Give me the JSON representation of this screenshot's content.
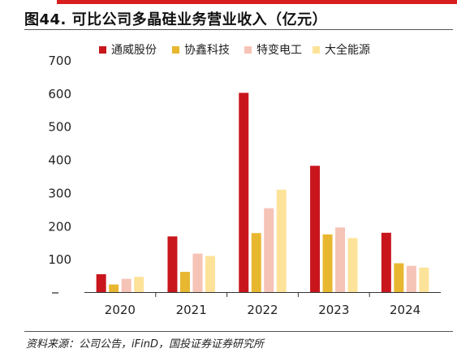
{
  "header": {
    "title": "图44. 可比公司多晶硅业务营业收入（亿元）",
    "accent_color": "#d71f1f"
  },
  "footer": {
    "source": "资料来源：公司公告，iFinD，国投证券证券研究所"
  },
  "chart_data": {
    "type": "bar",
    "title": "图44. 可比公司多晶硅业务营业收入（亿元）",
    "xlabel": "",
    "ylabel": "",
    "categories": [
      "2020",
      "2021",
      "2022",
      "2023",
      "2024"
    ],
    "series": [
      {
        "name": "通威股份",
        "color": "#c9161d",
        "values": [
          54,
          168,
          601,
          381,
          179
        ]
      },
      {
        "name": "协鑫科技",
        "color": "#e8b730",
        "values": [
          23,
          61,
          178,
          174,
          87
        ]
      },
      {
        "name": "特变电工",
        "color": "#f6c3b7",
        "values": [
          40,
          116,
          253,
          195,
          79
        ]
      },
      {
        "name": "大全能源",
        "color": "#fde39a",
        "values": [
          46,
          109,
          309,
          163,
          74
        ]
      }
    ],
    "ylim": [
      0,
      700
    ],
    "yticks": [
      100,
      200,
      300,
      400,
      500,
      600,
      700
    ],
    "ytick_labels": [
      "100",
      "200",
      "300",
      "400",
      "500",
      "600",
      "700"
    ],
    "grid": false,
    "legend": "top"
  }
}
